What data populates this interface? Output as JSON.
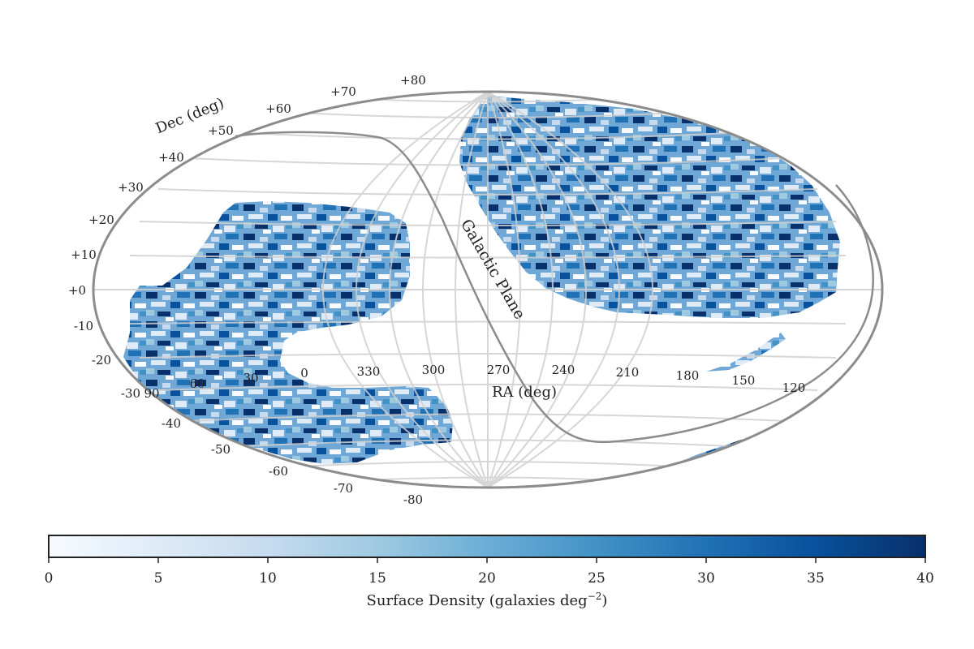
{
  "chart_data": {
    "type": "heatmap",
    "projection": "mollweide",
    "xlabel": "RA (deg)",
    "ylabel": "Dec (deg)",
    "annotation": "Galactic Plane",
    "ra_tick_labels": [
      "90",
      "60",
      "30",
      "0",
      "330",
      "300",
      "270",
      "240",
      "210",
      "180",
      "150",
      "120"
    ],
    "dec_tick_labels_left": [
      "+80",
      "+70",
      "+60",
      "+50",
      "+40",
      "+30",
      "+20",
      "+10",
      "+0",
      "-10",
      "-20",
      "-30"
    ],
    "dec_tick_labels_bottom": [
      "-40",
      "-50",
      "-60",
      "-70",
      "-80"
    ],
    "colorbar": {
      "label": "Surface Density (galaxies deg",
      "label_exponent": "−2",
      "label_close": ")",
      "min": 0,
      "max": 40,
      "ticks": [
        "0",
        "5",
        "10",
        "15",
        "20",
        "25",
        "30",
        "35",
        "40"
      ],
      "colormap": [
        "#f7fbff",
        "#deebf7",
        "#c6dbef",
        "#9ecae1",
        "#6baed6",
        "#4292c6",
        "#2171b5",
        "#08519c",
        "#08306b"
      ]
    },
    "footprints": [
      "north galactic cap region",
      "south galactic cap region"
    ],
    "grid": true
  }
}
